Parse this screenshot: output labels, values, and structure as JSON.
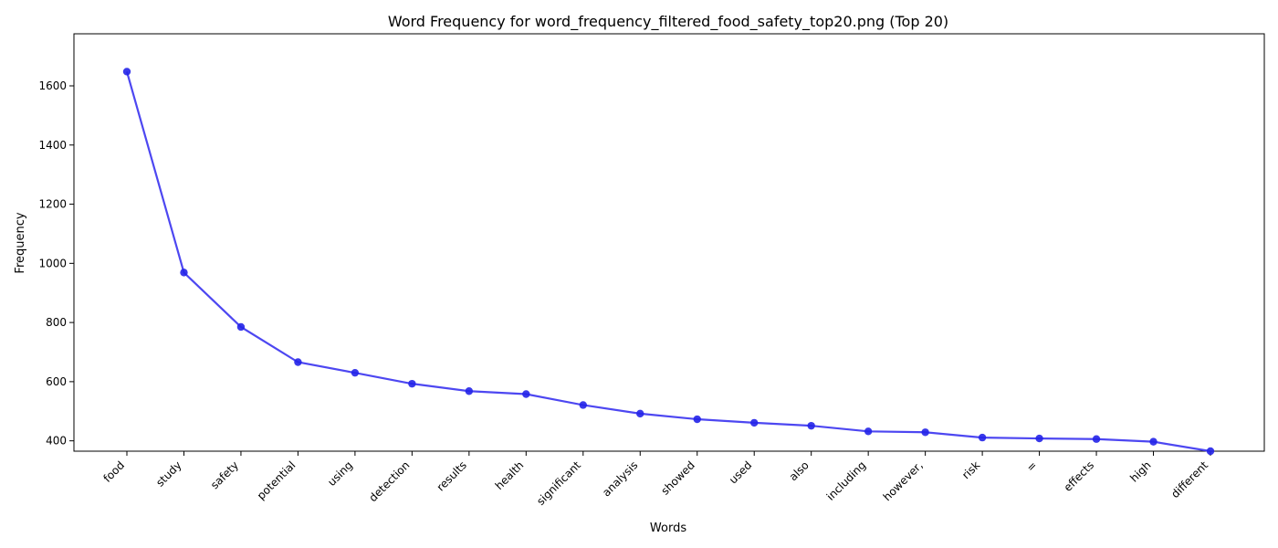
{
  "chart_data": {
    "type": "line",
    "title": "Word Frequency for word_frequency_filtered_food_safety_top20.png (Top 20)",
    "xlabel": "Words",
    "ylabel": "Frequency",
    "categories": [
      "food",
      "study",
      "safety",
      "potential",
      "using",
      "detection",
      "results",
      "health",
      "significant",
      "analysis",
      "showed",
      "used",
      "also",
      "including",
      "however,",
      "risk",
      "=",
      "effects",
      "high",
      "different"
    ],
    "series": [
      {
        "values": [
          1648,
          969,
          785,
          666,
          630,
          593,
          568,
          558,
          521,
          492,
          473,
          461,
          451,
          432,
          429,
          411,
          408,
          406,
          397,
          365
        ]
      }
    ],
    "ylim": [
      365,
      1776
    ],
    "yticks": [
      400,
      600,
      800,
      1000,
      1200,
      1400,
      1600
    ],
    "grid": false,
    "line_color": "#3a33f0",
    "marker_color": "#2323e8"
  }
}
